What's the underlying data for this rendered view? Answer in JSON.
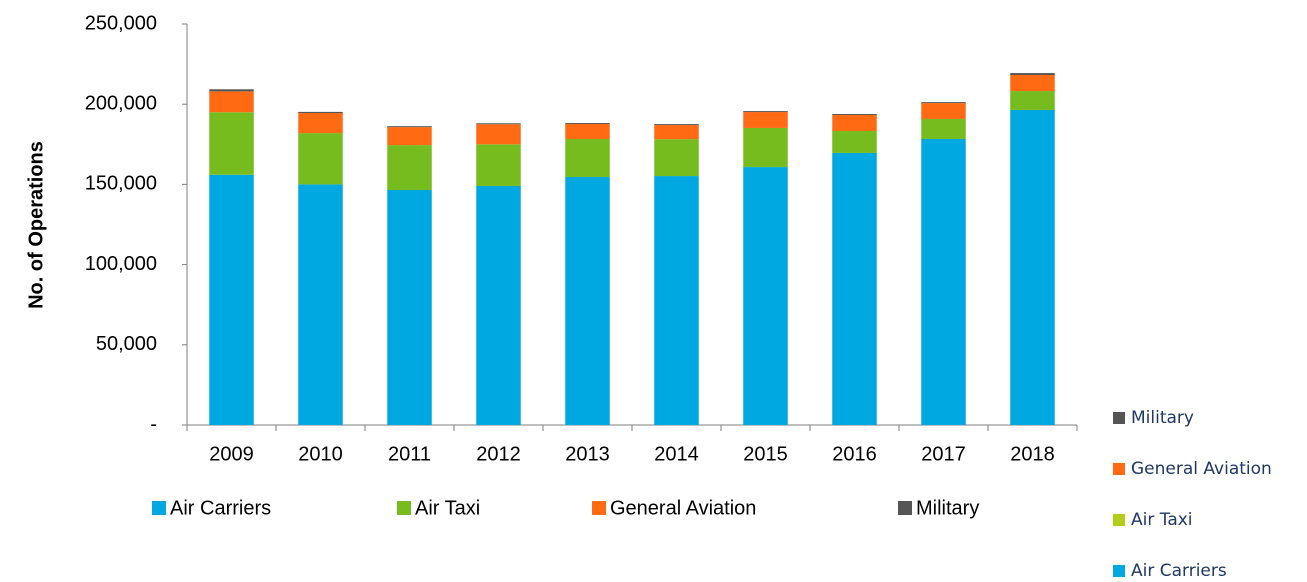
{
  "chart_data": {
    "type": "stacked_bar",
    "y_label": "No. of Operations",
    "categories": [
      "2009",
      "2010",
      "2011",
      "2012",
      "2013",
      "2014",
      "2015",
      "2016",
      "2017",
      "2018"
    ],
    "series": [
      {
        "name": "Air Carriers",
        "color": "#00a8e1",
        "values": [
          156000,
          150000,
          146500,
          149000,
          154600,
          155200,
          160800,
          169600,
          178300,
          196400
        ]
      },
      {
        "name": "Air Taxi",
        "color": "#77bc1f",
        "values": [
          39000,
          32000,
          28000,
          26000,
          23700,
          23000,
          24400,
          13700,
          12500,
          11800
        ]
      },
      {
        "name": "General Aviation",
        "color": "#ff6a13",
        "values": [
          13000,
          12500,
          11200,
          12500,
          9400,
          8800,
          9900,
          10000,
          9900,
          10000
        ]
      },
      {
        "name": "Military",
        "color": "#555555",
        "values": [
          1300,
          700,
          600,
          600,
          600,
          600,
          600,
          600,
          600,
          1200
        ]
      }
    ],
    "side_legend": [
      {
        "name": "Military",
        "color": "#555555"
      },
      {
        "name": "General Aviation",
        "color": "#ff6a13"
      },
      {
        "name": "Air Taxi",
        "color": "#b5cc18"
      },
      {
        "name": "Air Carriers",
        "color": "#00a8e1"
      }
    ],
    "ylim": [
      0,
      250000
    ],
    "yticks": [
      {
        "value": 0,
        "label": "-"
      },
      {
        "value": 50000,
        "label": "50,000"
      },
      {
        "value": 100000,
        "label": "100,000"
      },
      {
        "value": 150000,
        "label": "150,000"
      },
      {
        "value": 200000,
        "label": "200,000"
      },
      {
        "value": 250000,
        "label": "250,000"
      }
    ]
  }
}
